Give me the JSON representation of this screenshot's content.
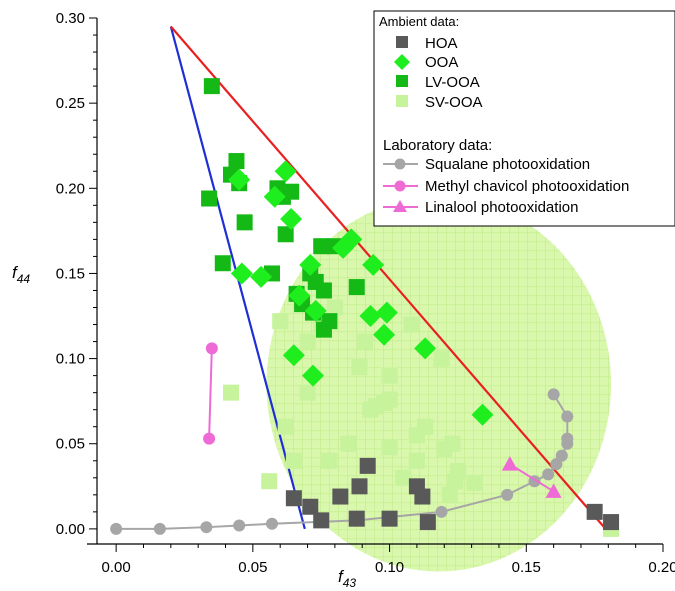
{
  "chart_data": {
    "type": "scatter",
    "x_label_main": "f",
    "x_label_sub": "43",
    "y_label_main": "f",
    "y_label_sub": "44",
    "xlim": [
      -0.007,
      0.2
    ],
    "ylim": [
      -0.003,
      0.3
    ],
    "x_ticks": [
      "0.00",
      "0.05",
      "0.10",
      "0.15",
      "0.20"
    ],
    "x_tick_values": [
      0.0,
      0.05,
      0.1,
      0.15,
      0.2
    ],
    "y_ticks": [
      "0.00",
      "0.05",
      "0.10",
      "0.15",
      "0.20",
      "0.25",
      "0.30"
    ],
    "y_tick_values": [
      0.0,
      0.05,
      0.1,
      0.15,
      0.2,
      0.25,
      0.3
    ],
    "legend": {
      "ambient_header": "Ambient data:",
      "laboratory_header": "Laboratory data:",
      "position": "top-right"
    },
    "triangle": {
      "apex": [
        0.02,
        0.295
      ],
      "left_base": [
        0.069,
        0.0
      ],
      "right_base": [
        0.179,
        0.0
      ],
      "left_color": "#1f2fd6",
      "right_color": "#e8201f"
    },
    "ellipse": {
      "center": [
        0.118,
        0.085
      ],
      "semi_major": 0.063,
      "semi_minor": 0.11,
      "color": "#d9f7ad"
    },
    "series": [
      {
        "name": "HOA",
        "marker": "square",
        "color": "#595959",
        "points": [
          [
            0.065,
            0.018
          ],
          [
            0.071,
            0.013
          ],
          [
            0.075,
            0.005
          ],
          [
            0.082,
            0.019
          ],
          [
            0.088,
            0.006
          ],
          [
            0.089,
            0.025
          ],
          [
            0.092,
            0.037
          ],
          [
            0.1,
            0.006
          ],
          [
            0.11,
            0.025
          ],
          [
            0.112,
            0.019
          ],
          [
            0.114,
            0.004
          ],
          [
            0.175,
            0.01
          ],
          [
            0.181,
            0.004
          ]
        ]
      },
      {
        "name": "OOA",
        "marker": "diamond",
        "color": "#1eee1e",
        "points": [
          [
            0.045,
            0.205
          ],
          [
            0.046,
            0.15
          ],
          [
            0.053,
            0.148
          ],
          [
            0.058,
            0.195
          ],
          [
            0.062,
            0.21
          ],
          [
            0.064,
            0.182
          ],
          [
            0.065,
            0.102
          ],
          [
            0.067,
            0.137
          ],
          [
            0.071,
            0.155
          ],
          [
            0.072,
            0.09
          ],
          [
            0.073,
            0.128
          ],
          [
            0.083,
            0.165
          ],
          [
            0.086,
            0.17
          ],
          [
            0.093,
            0.125
          ],
          [
            0.094,
            0.155
          ],
          [
            0.098,
            0.114
          ],
          [
            0.099,
            0.127
          ],
          [
            0.113,
            0.106
          ],
          [
            0.134,
            0.067
          ]
        ]
      },
      {
        "name": "LV-OOA",
        "marker": "square",
        "color": "#15b915",
        "points": [
          [
            0.034,
            0.194
          ],
          [
            0.035,
            0.26
          ],
          [
            0.039,
            0.156
          ],
          [
            0.042,
            0.208
          ],
          [
            0.044,
            0.216
          ],
          [
            0.045,
            0.203
          ],
          [
            0.047,
            0.18
          ],
          [
            0.057,
            0.15
          ],
          [
            0.059,
            0.2
          ],
          [
            0.061,
            0.195
          ],
          [
            0.062,
            0.173
          ],
          [
            0.064,
            0.198
          ],
          [
            0.066,
            0.138
          ],
          [
            0.068,
            0.132
          ],
          [
            0.071,
            0.15
          ],
          [
            0.072,
            0.127
          ],
          [
            0.073,
            0.145
          ],
          [
            0.075,
            0.166
          ],
          [
            0.076,
            0.14
          ],
          [
            0.076,
            0.117
          ],
          [
            0.078,
            0.122
          ],
          [
            0.08,
            0.166
          ],
          [
            0.088,
            0.142
          ]
        ]
      },
      {
        "name": "SV-OOA",
        "marker": "square",
        "color": "#c6f39c",
        "points": [
          [
            0.042,
            0.08
          ],
          [
            0.056,
            0.028
          ],
          [
            0.06,
            0.122
          ],
          [
            0.062,
            0.06
          ],
          [
            0.065,
            0.04
          ],
          [
            0.07,
            0.11
          ],
          [
            0.07,
            0.08
          ],
          [
            0.075,
            0.12
          ],
          [
            0.078,
            0.04
          ],
          [
            0.08,
            0.13
          ],
          [
            0.085,
            0.05
          ],
          [
            0.089,
            0.095
          ],
          [
            0.091,
            0.11
          ],
          [
            0.093,
            0.07
          ],
          [
            0.095,
            0.072
          ],
          [
            0.098,
            0.074
          ],
          [
            0.1,
            0.076
          ],
          [
            0.1,
            0.048
          ],
          [
            0.1,
            0.09
          ],
          [
            0.105,
            0.03
          ],
          [
            0.108,
            0.12
          ],
          [
            0.11,
            0.055
          ],
          [
            0.11,
            0.04
          ],
          [
            0.113,
            0.06
          ],
          [
            0.119,
            0.1
          ],
          [
            0.12,
            0.047
          ],
          [
            0.122,
            0.02
          ],
          [
            0.123,
            0.05
          ],
          [
            0.124,
            0.028
          ],
          [
            0.125,
            0.034
          ],
          [
            0.131,
            0.027
          ],
          [
            0.181,
            0.0
          ]
        ]
      },
      {
        "name": "Squalane photooxidation",
        "marker": "circle-line",
        "color": "#a6a6a6",
        "points": [
          [
            0.0,
            0.0
          ],
          [
            0.016,
            0.0
          ],
          [
            0.033,
            0.001
          ],
          [
            0.045,
            0.002
          ],
          [
            0.057,
            0.003
          ],
          [
            0.088,
            0.005
          ],
          [
            0.119,
            0.01
          ],
          [
            0.143,
            0.02
          ],
          [
            0.153,
            0.028
          ],
          [
            0.158,
            0.032
          ],
          [
            0.161,
            0.038
          ],
          [
            0.163,
            0.043
          ],
          [
            0.165,
            0.05
          ],
          [
            0.165,
            0.053
          ],
          [
            0.165,
            0.066
          ],
          [
            0.16,
            0.079
          ]
        ]
      },
      {
        "name": "Methyl chavicol photooxidation",
        "marker": "circle-line",
        "color": "#ee6bd6",
        "points": [
          [
            0.035,
            0.106
          ],
          [
            0.034,
            0.053
          ]
        ]
      },
      {
        "name": "Linalool photooxidation",
        "marker": "triangle-line",
        "color": "#ee6bd6",
        "points": [
          [
            0.144,
            0.038
          ],
          [
            0.16,
            0.022
          ]
        ]
      }
    ]
  }
}
